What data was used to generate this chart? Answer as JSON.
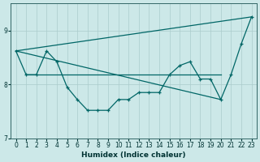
{
  "xlabel": "Humidex (Indice chaleur)",
  "xlim": [
    -0.5,
    23.5
  ],
  "ylim": [
    7.0,
    9.5
  ],
  "yticks": [
    7,
    8,
    9
  ],
  "xticks": [
    0,
    1,
    2,
    3,
    4,
    5,
    6,
    7,
    8,
    9,
    10,
    11,
    12,
    13,
    14,
    15,
    16,
    17,
    18,
    19,
    20,
    21,
    22,
    23
  ],
  "bg_color": "#cce8e8",
  "line_color": "#006666",
  "grid_color": "#aacccc",
  "upper_line": {
    "x": [
      0,
      23
    ],
    "y": [
      8.62,
      9.25
    ]
  },
  "lower_line": {
    "x": [
      0,
      20
    ],
    "y": [
      8.62,
      7.72
    ]
  },
  "flat_line": {
    "x": [
      1,
      2,
      3,
      4,
      5,
      6,
      7,
      8,
      9,
      10,
      11,
      12,
      13,
      14,
      15,
      16,
      17,
      18,
      19,
      20
    ],
    "y": [
      8.18,
      8.18,
      8.18,
      8.18,
      8.18,
      8.18,
      8.18,
      8.18,
      8.18,
      8.18,
      8.18,
      8.18,
      8.18,
      8.18,
      8.18,
      8.18,
      8.18,
      8.18,
      8.18,
      8.18
    ]
  },
  "zigzag_x": [
    0,
    1,
    2,
    3,
    4,
    5,
    6,
    7,
    8,
    9,
    10,
    11,
    12,
    13,
    14,
    15,
    16,
    17,
    18,
    19,
    20,
    21,
    22,
    23
  ],
  "zigzag_y": [
    8.62,
    8.18,
    8.18,
    8.62,
    8.42,
    7.95,
    7.72,
    7.52,
    7.52,
    7.52,
    7.72,
    7.72,
    7.85,
    7.85,
    7.85,
    8.18,
    8.35,
    8.42,
    8.1,
    8.1,
    7.72,
    8.18,
    8.75,
    9.25
  ]
}
